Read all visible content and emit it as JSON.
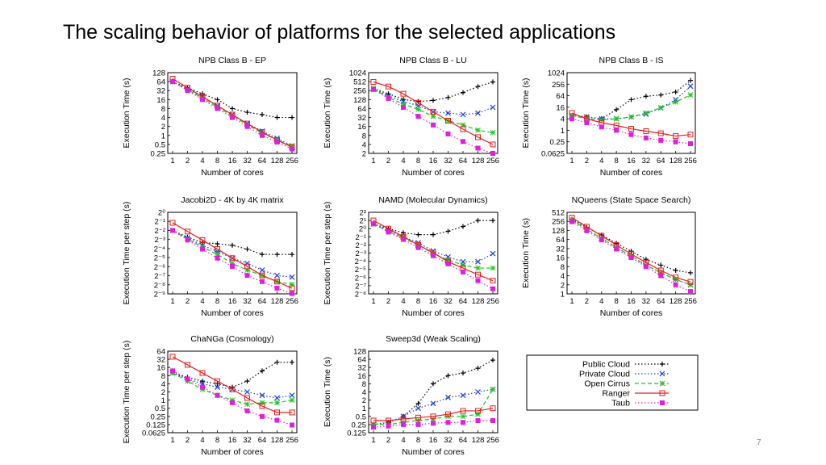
{
  "slide": {
    "title": "The scaling behavior of platforms for the selected applications",
    "page_number": "7"
  },
  "colors": {
    "public_cloud": "#000000",
    "private_cloud": "#1f3fd6",
    "open_cirrus": "#1ec41e",
    "ranger": "#e81e1e",
    "taub": "#e01ee0"
  },
  "legend": [
    {
      "name": "Public Cloud",
      "key": "public_cloud",
      "marker": "plus",
      "dash": "dots"
    },
    {
      "name": "Private Cloud",
      "key": "private_cloud",
      "marker": "x",
      "dash": "dots"
    },
    {
      "name": "Open Cirrus",
      "key": "open_cirrus",
      "marker": "star",
      "dash": "dash"
    },
    {
      "name": "Ranger",
      "key": "ranger",
      "marker": "square",
      "dash": "solid"
    },
    {
      "name": "Taub",
      "key": "taub",
      "marker": "filled-square",
      "dash": "dots"
    }
  ],
  "chart_data": [
    {
      "type": "line",
      "title": "NPB Class B - EP",
      "xlabel": "Number of cores",
      "ylabel": "Execution Time (s)",
      "y_log_base": 2,
      "ylim": [
        0.25,
        128
      ],
      "x": [
        1,
        2,
        4,
        8,
        16,
        32,
        64,
        128,
        256
      ],
      "x_tick_labels": [
        "1",
        "2",
        "4",
        "8",
        "16",
        "32",
        "64",
        "128",
        "256"
      ],
      "y_ticks": [
        128,
        64,
        32,
        16,
        8,
        4,
        2,
        1,
        0.5,
        0.25
      ],
      "y_tick_labels": [
        "128",
        "64",
        "32",
        "16",
        "8",
        "4",
        "2",
        "1",
        "0.5",
        "0.25"
      ],
      "series": [
        {
          "name": "Public Cloud",
          "values": [
            64,
            40,
            25,
            16,
            8,
            6,
            5,
            4,
            4
          ]
        },
        {
          "name": "Private Cloud",
          "values": [
            64,
            36,
            20,
            10,
            5,
            2.5,
            1.4,
            0.8,
            0.45
          ]
        },
        {
          "name": "Open Cirrus",
          "values": [
            64,
            34,
            18,
            9,
            4.5,
            2.3,
            1.2,
            0.7,
            0.45
          ]
        },
        {
          "name": "Ranger",
          "values": [
            80,
            40,
            20,
            10,
            5,
            2.5,
            1.3,
            0.7,
            0.4
          ]
        },
        {
          "name": "Taub",
          "values": [
            64,
            32,
            16,
            8,
            4,
            2,
            1,
            0.6,
            0.35
          ]
        }
      ]
    },
    {
      "type": "line",
      "title": "NPB Class B - LU",
      "xlabel": "Number of cores",
      "ylabel": "Execution Time (s)",
      "y_log_base": 2,
      "ylim": [
        2,
        1024
      ],
      "x": [
        1,
        2,
        4,
        8,
        16,
        32,
        64,
        128,
        256
      ],
      "x_tick_labels": [
        "1",
        "2",
        "4",
        "8",
        "16",
        "32",
        "64",
        "128",
        "256"
      ],
      "y_ticks": [
        1024,
        512,
        256,
        128,
        64,
        32,
        16,
        8,
        4,
        2
      ],
      "y_tick_labels": [
        "1024",
        "512",
        "256",
        "128",
        "64",
        "32",
        "16",
        "8",
        "4",
        "2"
      ],
      "series": [
        {
          "name": "Public Cloud",
          "values": [
            300,
            200,
            130,
            110,
            120,
            150,
            220,
            350,
            500
          ]
        },
        {
          "name": "Private Cloud",
          "values": [
            300,
            170,
            110,
            80,
            50,
            45,
            40,
            45,
            70
          ]
        },
        {
          "name": "Open Cirrus",
          "values": [
            300,
            150,
            90,
            60,
            35,
            25,
            18,
            12,
            10
          ]
        },
        {
          "name": "Ranger",
          "values": [
            500,
            350,
            200,
            100,
            50,
            25,
            13,
            7,
            4
          ]
        },
        {
          "name": "Taub",
          "values": [
            280,
            140,
            70,
            35,
            18,
            9,
            5,
            3,
            2
          ]
        }
      ]
    },
    {
      "type": "line",
      "title": "NPB Class B - IS",
      "xlabel": "Number of cores",
      "ylabel": "Execution Time (s)",
      "y_log_base": 2,
      "ylim": [
        0.0625,
        1024
      ],
      "x": [
        1,
        2,
        4,
        8,
        16,
        32,
        64,
        128,
        256
      ],
      "x_tick_labels": [
        "1",
        "2",
        "4",
        "8",
        "16",
        "32",
        "64",
        "128",
        "256"
      ],
      "y_ticks": [
        1024,
        256,
        64,
        16,
        4,
        1,
        0.25,
        0.0625
      ],
      "y_tick_labels": [
        "1024",
        "256",
        "64",
        "16",
        "4",
        "1",
        "0.25",
        "0.0625"
      ],
      "series": [
        {
          "name": "Public Cloud",
          "values": [
            6,
            5,
            4,
            12,
            40,
            60,
            70,
            100,
            400
          ]
        },
        {
          "name": "Private Cloud",
          "values": [
            6,
            5,
            4,
            4,
            5,
            7,
            15,
            40,
            200
          ]
        },
        {
          "name": "Open Cirrus",
          "values": [
            6,
            4,
            3.5,
            4,
            5,
            8,
            15,
            30,
            70
          ]
        },
        {
          "name": "Ranger",
          "values": [
            8,
            4,
            2.5,
            1.8,
            1.2,
            0.9,
            0.7,
            0.5,
            0.6
          ]
        },
        {
          "name": "Taub",
          "values": [
            4,
            2.5,
            1.5,
            1,
            0.6,
            0.4,
            0.3,
            0.25,
            0.2
          ]
        }
      ]
    },
    {
      "type": "line",
      "title": "Jacobi2D - 4K by 4K matrix",
      "xlabel": "Number of cores",
      "ylabel": "Execution Time per step (s)",
      "y_log_base": 2,
      "ylim": [
        0.001953125,
        1
      ],
      "x": [
        1,
        2,
        4,
        8,
        16,
        32,
        64,
        128,
        256
      ],
      "x_tick_labels": [
        "1",
        "2",
        "4",
        "8",
        "16",
        "32",
        "64",
        "128",
        "256"
      ],
      "y_ticks": [
        1,
        0.5,
        0.25,
        0.125,
        0.0625,
        0.03125,
        0.015625,
        0.0078125,
        0.00390625,
        0.001953125
      ],
      "y_tick_labels": [
        "2⁰",
        "2⁻¹",
        "2⁻²",
        "2⁻³",
        "2⁻⁴",
        "2⁻⁵",
        "2⁻⁶",
        "2⁻⁷",
        "2⁻⁸",
        "2⁻⁹"
      ],
      "series": [
        {
          "name": "Public Cloud",
          "values": [
            0.25,
            0.15,
            0.1,
            0.09,
            0.08,
            0.06,
            0.04,
            0.04,
            0.04
          ]
        },
        {
          "name": "Private Cloud",
          "values": [
            0.25,
            0.14,
            0.08,
            0.05,
            0.03,
            0.02,
            0.012,
            0.008,
            0.007
          ]
        },
        {
          "name": "Open Cirrus",
          "values": [
            0.25,
            0.13,
            0.07,
            0.04,
            0.02,
            0.012,
            0.008,
            0.005,
            0.004
          ]
        },
        {
          "name": "Ranger",
          "values": [
            0.45,
            0.23,
            0.12,
            0.06,
            0.03,
            0.016,
            0.008,
            0.005,
            0.003
          ]
        },
        {
          "name": "Taub",
          "values": [
            0.25,
            0.12,
            0.06,
            0.03,
            0.016,
            0.008,
            0.005,
            0.003,
            0.002
          ]
        }
      ]
    },
    {
      "type": "line",
      "title": "NAMD (Molecular Dynamics)",
      "xlabel": "Number of cores",
      "ylabel": "Execution Time per step (s)",
      "y_log_base": 2,
      "ylim": [
        0.00390625,
        4
      ],
      "x": [
        1,
        2,
        4,
        8,
        16,
        32,
        64,
        128,
        256
      ],
      "x_tick_labels": [
        "1",
        "2",
        "4",
        "8",
        "16",
        "32",
        "64",
        "128",
        "256"
      ],
      "y_ticks": [
        4,
        2,
        1,
        0.5,
        0.25,
        0.125,
        0.0625,
        0.03125,
        0.015625,
        0.0078125,
        0.00390625
      ],
      "y_tick_labels": [
        "2²",
        "2¹",
        "2⁰",
        "2⁻¹",
        "2⁻²",
        "2⁻³",
        "2⁻⁴",
        "2⁻⁵",
        "2⁻⁶",
        "2⁻⁷",
        "2⁻⁸"
      ],
      "series": [
        {
          "name": "Public Cloud",
          "values": [
            1.5,
            1,
            0.7,
            0.6,
            0.6,
            0.8,
            1.2,
            2,
            2
          ]
        },
        {
          "name": "Private Cloud",
          "values": [
            1.5,
            0.9,
            0.5,
            0.3,
            0.15,
            0.09,
            0.06,
            0.06,
            0.12
          ]
        },
        {
          "name": "Open Cirrus",
          "values": [
            1.5,
            0.8,
            0.45,
            0.25,
            0.12,
            0.07,
            0.045,
            0.035,
            0.035
          ]
        },
        {
          "name": "Ranger",
          "values": [
            2,
            1,
            0.5,
            0.25,
            0.13,
            0.06,
            0.035,
            0.02,
            0.012
          ]
        },
        {
          "name": "Taub",
          "values": [
            1.5,
            0.75,
            0.4,
            0.2,
            0.1,
            0.05,
            0.025,
            0.012,
            0.006
          ]
        }
      ]
    },
    {
      "type": "line",
      "title": "NQueens (State Space Search)",
      "xlabel": "Number of cores",
      "ylabel": "Execution Time (s)",
      "y_log_base": 2,
      "ylim": [
        1,
        512
      ],
      "x": [
        1,
        2,
        4,
        8,
        16,
        32,
        64,
        128,
        256
      ],
      "x_tick_labels": [
        "1",
        "2",
        "4",
        "8",
        "16",
        "32",
        "64",
        "128",
        "256"
      ],
      "y_ticks": [
        512,
        256,
        128,
        64,
        32,
        16,
        8,
        4,
        2,
        1
      ],
      "y_tick_labels": [
        "512",
        "256",
        "128",
        "64",
        "32",
        "16",
        "8",
        "4",
        "2",
        "1"
      ],
      "series": [
        {
          "name": "Public Cloud",
          "values": [
            300,
            160,
            90,
            48,
            26,
            14,
            9,
            6,
            5
          ]
        },
        {
          "name": "Private Cloud",
          "values": [
            280,
            140,
            70,
            35,
            18,
            9,
            5,
            3,
            2
          ]
        },
        {
          "name": "Open Cirrus",
          "values": [
            280,
            140,
            70,
            35,
            18,
            9,
            5,
            3,
            2
          ]
        },
        {
          "name": "Ranger",
          "values": [
            340,
            170,
            85,
            42,
            21,
            11,
            6,
            3.5,
            2.5
          ]
        },
        {
          "name": "Taub",
          "values": [
            250,
            125,
            62,
            31,
            16,
            8,
            4,
            2,
            1.2
          ]
        }
      ]
    },
    {
      "type": "line",
      "title": "ChaNGa (Cosmology)",
      "xlabel": "Number of cores",
      "ylabel": "Execution Time per step (s)",
      "y_log_base": 2,
      "ylim": [
        0.0625,
        64
      ],
      "x": [
        1,
        2,
        4,
        8,
        16,
        32,
        64,
        128,
        256
      ],
      "x_tick_labels": [
        "1",
        "2",
        "4",
        "8",
        "16",
        "32",
        "64",
        "128",
        "256"
      ],
      "y_ticks": [
        64,
        32,
        16,
        8,
        4,
        2,
        1,
        0.5,
        0.25,
        0.125,
        0.0625
      ],
      "y_tick_labels": [
        "64",
        "32",
        "16",
        "8",
        "4",
        "2",
        "1",
        "0.5",
        "0.25",
        "0.125",
        "0.0625"
      ],
      "series": [
        {
          "name": "Public Cloud",
          "values": [
            10,
            7,
            5,
            4,
            3,
            5,
            12,
            25,
            25
          ]
        },
        {
          "name": "Private Cloud",
          "values": [
            10,
            6,
            4,
            3,
            2.5,
            2,
            1.5,
            1.2,
            1.5
          ]
        },
        {
          "name": "Open Cirrus",
          "values": [
            10,
            5,
            2.5,
            1.5,
            1,
            0.7,
            0.8,
            0.8,
            1
          ]
        },
        {
          "name": "Ranger",
          "values": [
            40,
            20,
            10,
            5,
            2.5,
            1.2,
            0.6,
            0.35,
            0.35
          ]
        },
        {
          "name": "Taub",
          "values": [
            12,
            6,
            3,
            1.5,
            0.8,
            0.4,
            0.25,
            0.18,
            0.12
          ]
        }
      ]
    },
    {
      "type": "line",
      "title": "Sweep3d (Weak Scaling)",
      "xlabel": "Number of cores",
      "ylabel": "Execution Time (s)",
      "y_log_base": 2,
      "ylim": [
        0.125,
        128
      ],
      "x": [
        1,
        2,
        4,
        8,
        16,
        32,
        64,
        128,
        256
      ],
      "x_tick_labels": [
        "1",
        "2",
        "4",
        "8",
        "16",
        "32",
        "64",
        "128",
        "256"
      ],
      "y_ticks": [
        128,
        64,
        32,
        16,
        8,
        4,
        2,
        1,
        0.5,
        0.25,
        0.125
      ],
      "y_tick_labels": [
        "128",
        "64",
        "32",
        "16",
        "8",
        "4",
        "2",
        "1",
        "0.5",
        "0.25",
        "0.125"
      ],
      "series": [
        {
          "name": "Public Cloud",
          "values": [
            0.25,
            0.3,
            0.5,
            1.5,
            8,
            16,
            20,
            30,
            60
          ]
        },
        {
          "name": "Private Cloud",
          "values": [
            0.25,
            0.3,
            0.5,
            1,
            1.5,
            2.5,
            3,
            4,
            5
          ]
        },
        {
          "name": "Open Cirrus",
          "values": [
            0.25,
            0.25,
            0.3,
            0.35,
            0.4,
            0.5,
            0.5,
            0.6,
            5
          ]
        },
        {
          "name": "Ranger",
          "values": [
            0.35,
            0.35,
            0.4,
            0.45,
            0.5,
            0.6,
            0.8,
            0.8,
            1
          ]
        },
        {
          "name": "Taub",
          "values": [
            0.2,
            0.22,
            0.25,
            0.25,
            0.28,
            0.3,
            0.3,
            0.35,
            0.35
          ]
        }
      ]
    }
  ]
}
